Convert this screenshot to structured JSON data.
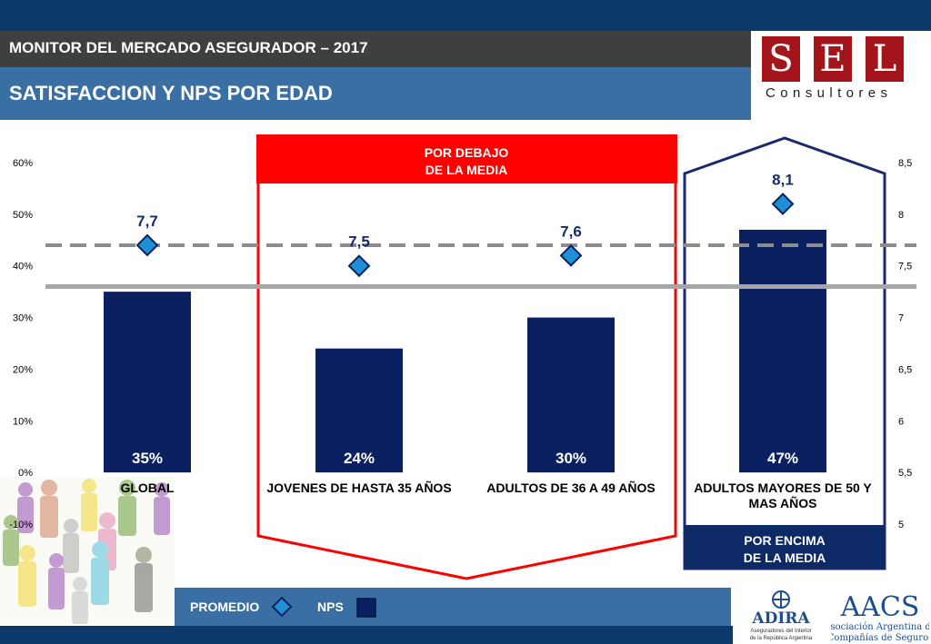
{
  "header": {
    "subtitle": "MONITOR DEL MERCADO ASEGURADOR – 2017",
    "title": "SATISFACCION Y NPS POR EDAD"
  },
  "logo": {
    "letters": [
      "S",
      "E",
      "L"
    ],
    "subtitle": "Consultores",
    "color": "#a3151b"
  },
  "chart_data": {
    "type": "bar",
    "categories": [
      "GLOBAL",
      "JOVENES DE HASTA 35 AÑOS",
      "ADULTOS DE 36 A 49 AÑOS",
      "ADULTOS MAYORES DE 50 Y MAS AÑOS"
    ],
    "series": [
      {
        "name": "NPS",
        "kind": "bar",
        "axis": "left",
        "values": [
          35,
          24,
          30,
          47
        ],
        "labels": [
          "35%",
          "24%",
          "30%",
          "47%"
        ],
        "color": "#0b2060"
      },
      {
        "name": "PROMEDIO",
        "kind": "marker",
        "axis": "right",
        "values": [
          7.7,
          7.5,
          7.6,
          8.1
        ],
        "labels": [
          "7,7",
          "7,5",
          "7,6",
          "8,1"
        ],
        "color": "#1e90d6"
      }
    ],
    "y_left": {
      "range": [
        -10,
        60
      ],
      "ticks": [
        "60%",
        "50%",
        "40%",
        "30%",
        "20%",
        "10%",
        "0%",
        "-10%"
      ]
    },
    "y_right": {
      "range": [
        5,
        8.5
      ],
      "ticks": [
        "8,5",
        "8",
        "7,5",
        "7",
        "6,5",
        "6",
        "5,5",
        "5"
      ]
    },
    "reference_lines": [
      {
        "style": "dashed",
        "axis": "right",
        "value": 7.7,
        "color": "#8c8c8c"
      },
      {
        "style": "solid",
        "axis": "left",
        "value": 36,
        "color": "#a6a6a6"
      }
    ],
    "annotations": [
      {
        "text": [
          "POR DEBAJO",
          "DE LA MEDIA"
        ],
        "color": "#ff0000",
        "groups": [
          1,
          2
        ]
      },
      {
        "text": [
          "POR ENCIMA",
          "DE LA MEDIA"
        ],
        "color": "#1b2a6b",
        "groups": [
          3
        ]
      }
    ],
    "grid": false
  },
  "legend": {
    "promedio": "PROMEDIO",
    "nps": "NPS"
  },
  "sponsors": {
    "adira": {
      "name": "ADIRA",
      "tagline": [
        "Aseguradores del Interior",
        "de la República Argentina"
      ]
    },
    "aacs": {
      "name": "AACS",
      "tagline": [
        "Asociación Argentina de",
        "Compañías de Seguros"
      ]
    }
  }
}
